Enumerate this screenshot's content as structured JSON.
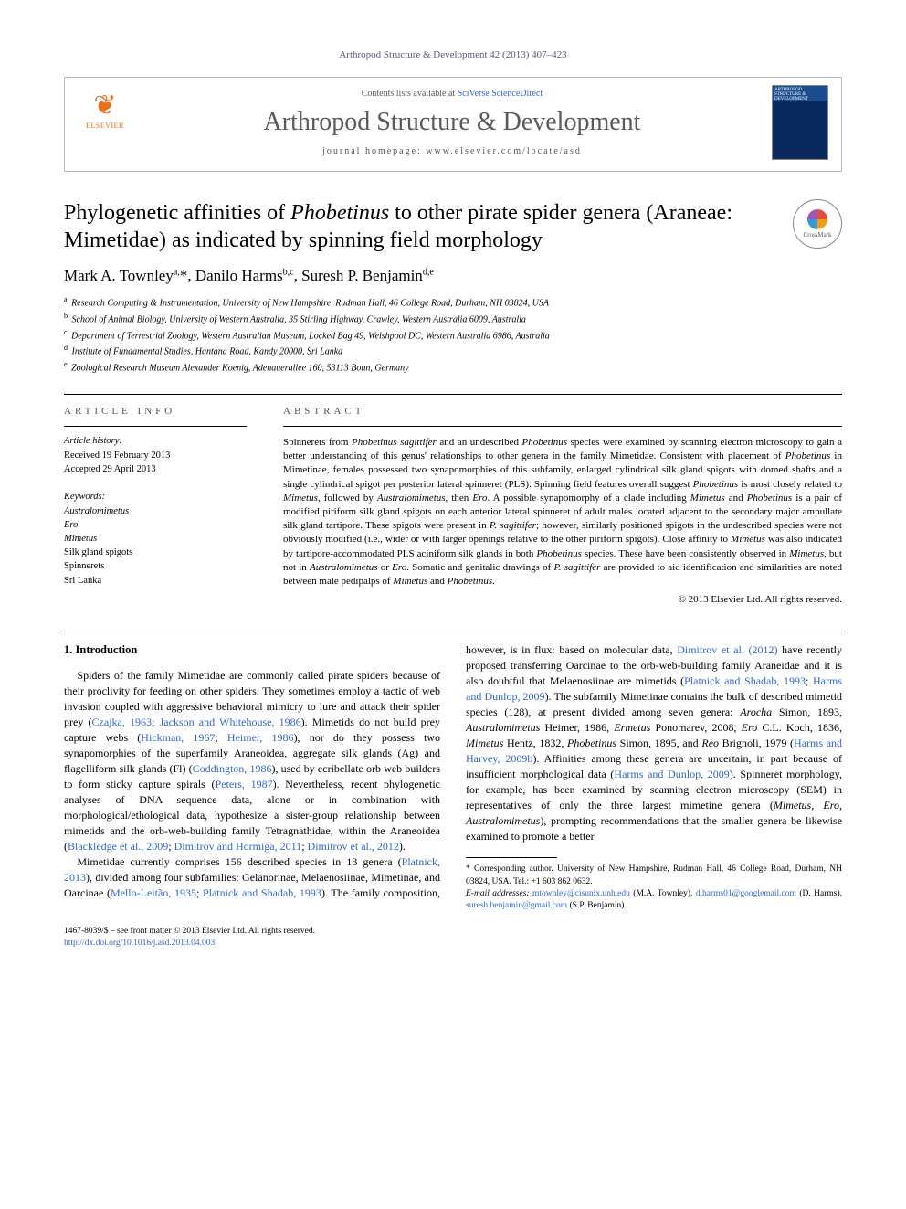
{
  "running_head": "Arthropod Structure & Development 42 (2013) 407–423",
  "header": {
    "contents_prefix": "Contents lists available at ",
    "contents_link": "SciVerse ScienceDirect",
    "journal": "Arthropod Structure & Development",
    "homepage_prefix": "journal homepage: ",
    "homepage_url": "www.elsevier.com/locate/asd",
    "elsevier": "ELSEVIER",
    "cover_label": "ARTHROPOD STRUCTURE & DEVELOPMENT"
  },
  "title_pre": "Phylogenetic affinities of ",
  "title_ital": "Phobetinus",
  "title_post": " to other pirate spider genera (Araneae: Mimetidae) as indicated by spinning field morphology",
  "crossmark": "CrossMark",
  "authors_html": "Mark A. Townley<sup>a,</sup>*, Danilo Harms<sup>b,c</sup>, Suresh P. Benjamin<sup>d,e</sup>",
  "affiliations": [
    {
      "sup": "a",
      "text": "Research Computing & Instrumentation, University of New Hampshire, Rudman Hall, 46 College Road, Durham, NH 03824, USA"
    },
    {
      "sup": "b",
      "text": "School of Animal Biology, University of Western Australia, 35 Stirling Highway, Crawley, Western Australia 6009, Australia"
    },
    {
      "sup": "c",
      "text": "Department of Terrestrial Zoology, Western Australian Museum, Locked Bag 49, Welshpool DC, Western Australia 6986, Australia"
    },
    {
      "sup": "d",
      "text": "Institute of Fundamental Studies, Hantana Road, Kandy 20000, Sri Lanka"
    },
    {
      "sup": "e",
      "text": "Zoological Research Museum Alexander Koenig, Adenauerallee 160, 53113 Bonn, Germany"
    }
  ],
  "article_info": {
    "head": "ARTICLE INFO",
    "history_label": "Article history:",
    "received": "Received 19 February 2013",
    "accepted": "Accepted 29 April 2013",
    "keywords_label": "Keywords:",
    "keywords": [
      "Australomimetus",
      "Ero",
      "Mimetus",
      "Silk gland spigots",
      "Spinnerets",
      "Sri Lanka"
    ]
  },
  "abstract": {
    "head": "ABSTRACT",
    "text": "Spinnerets from Phobetinus sagittifer and an undescribed Phobetinus species were examined by scanning electron microscopy to gain a better understanding of this genus' relationships to other genera in the family Mimetidae. Consistent with placement of Phobetinus in Mimetinae, females possessed two synapomorphies of this subfamily, enlarged cylindrical silk gland spigots with domed shafts and a single cylindrical spigot per posterior lateral spinneret (PLS). Spinning field features overall suggest Phobetinus is most closely related to Mimetus, followed by Australomimetus, then Ero. A possible synapomorphy of a clade including Mimetus and Phobetinus is a pair of modified piriform silk gland spigots on each anterior lateral spinneret of adult males located adjacent to the secondary major ampullate silk gland tartipore. These spigots were present in P. sagittifer; however, similarly positioned spigots in the undescribed species were not obviously modified (i.e., wider or with larger openings relative to the other piriform spigots). Close affinity to Mimetus was also indicated by tartipore-accommodated PLS aciniform silk glands in both Phobetinus species. These have been consistently observed in Mimetus, but not in Australomimetus or Ero. Somatic and genitalic drawings of P. sagittifer are provided to aid identification and similarities are noted between male pedipalps of Mimetus and Phobetinus.",
    "copyright": "© 2013 Elsevier Ltd. All rights reserved."
  },
  "body": {
    "section_head": "1. Introduction",
    "para1_a": "Spiders of the family Mimetidae are commonly called pirate spiders because of their proclivity for feeding on other spiders. They sometimes employ a tactic of web invasion coupled with aggressive behavioral mimicry to lure and attack their spider prey (",
    "para1_link1": "Czajka, 1963",
    "para1_b": "; ",
    "para1_link2": "Jackson and Whitehouse, 1986",
    "para1_c": "). Mimetids do not build prey capture webs (",
    "para1_link3": "Hickman, 1967",
    "para1_d": "; ",
    "para1_link4": "Heimer, 1986",
    "para1_e": "), nor do they possess two synapomorphies of the superfamily Araneoidea, aggregate silk glands (Ag) and flagelliform silk glands (Fl) (",
    "para1_link5": "Coddington, 1986",
    "para1_f": "), used by ecribellate orb web builders to form sticky capture spirals (",
    "para1_link6": "Peters, 1987",
    "para1_g": "). Nevertheless, recent phylogenetic analyses of DNA sequence data, alone or in combination with morphological/ethological data, hypothesize a sister-group relationship between mimetids and the orb-web-building family Tetragnathidae, within the Araneoidea (",
    "para1_link7": "Blackledge et al., 2009",
    "para1_h": "; ",
    "para1_link8": "Dimitrov and Hormiga, 2011",
    "para1_i": "; ",
    "para1_link9": "Dimitrov et al., 2012",
    "para1_j": ").",
    "para2_a": "Mimetidae currently comprises 156 described species in 13 genera (",
    "para2_link1": "Platnick, 2013",
    "para2_b": "), divided among four subfamilies: Gelanorinae, Melaenosiinae, Mimetinae, and Oarcinae (",
    "para2_link2": "Mello-Leitão, 1935",
    "para2_c": "; ",
    "para2_link3": "Platnick and Shadab, 1993",
    "para2_d": "). The family composition, however, is in flux: based on molecular data, ",
    "para2_link4": "Dimitrov et al. (2012)",
    "para2_e": " have recently proposed transferring Oarcinae to the orb-web-building family Araneidae and it is also doubtful that Melaenosiinae are mimetids (",
    "para2_link5": "Platnick and Shadab, 1993",
    "para2_f": "; ",
    "para2_link6": "Harms and Dunlop, 2009",
    "para2_g": "). The subfamily Mimetinae contains the bulk of described mimetid species (128), at present divided among seven genera: ",
    "para2_ital1": "Arocha",
    "para2_h": " Simon, 1893, ",
    "para2_ital2": "Australomimetus",
    "para2_i": " Heimer, 1986, ",
    "para2_ital3": "Ermetus",
    "para2_j": " Ponomarev, 2008, ",
    "para2_ital4": "Ero",
    "para2_k": " C.L. Koch, 1836, ",
    "para2_ital5": "Mimetus",
    "para2_l": " Hentz, 1832, ",
    "para2_ital6": "Phobetinus",
    "para2_m": " Simon, 1895, and ",
    "para2_ital7": "Reo",
    "para2_n": " Brignoli, 1979 (",
    "para2_link7": "Harms and Harvey, 2009b",
    "para2_o": "). Affinities among these genera are uncertain, in part because of insufficient morphological data (",
    "para2_link8": "Harms and Dunlop, 2009",
    "para2_p": "). Spinneret morphology, for example, has been examined by scanning electron microscopy (SEM) in representatives of only the three largest mimetine genera (",
    "para2_ital8": "Mimetus, Ero, Australomimetus",
    "para2_q": "), prompting recommendations that the smaller genera be likewise examined to promote a better"
  },
  "footnotes": {
    "corr": "* Corresponding author. University of New Hampshire, Rudman Hall, 46 College Road, Durham, NH 03824, USA. Tel.: +1 603 862 0632.",
    "email_label": "E-mail addresses: ",
    "email1": "mtownley@cisunix.unh.edu",
    "email1_suf": " (M.A. Townley), ",
    "email2": "d.harms01@googlemail.com",
    "email2_suf": " (D. Harms), ",
    "email3": "suresh.benjamin@gmail.com",
    "email3_suf": " (S.P. Benjamin)."
  },
  "footer": {
    "line1": "1467-8039/$ – see front matter © 2013 Elsevier Ltd. All rights reserved.",
    "doi": "http://dx.doi.org/10.1016/j.asd.2013.04.003"
  }
}
